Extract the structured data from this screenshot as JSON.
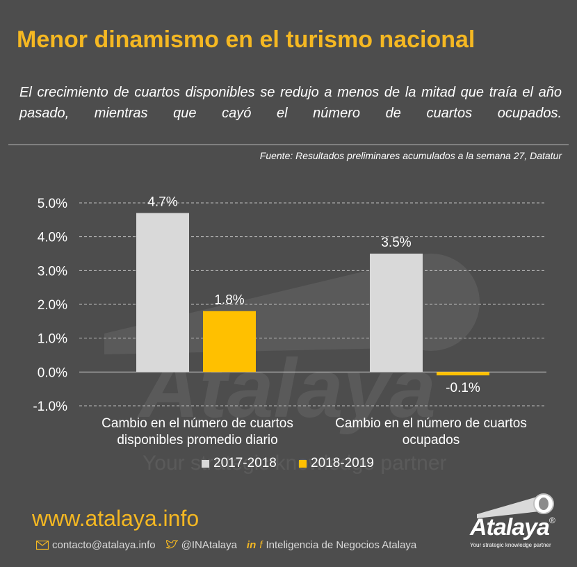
{
  "header": {
    "title": "Menor dinamismo en el turismo nacional",
    "subtitle": "El crecimiento de cuartos disponibles se redujo a menos de la mitad que traía el año pasado, mientras que cayó el número de cuartos ocupados.",
    "source": "Fuente: Resultados preliminares acumulados a la semana 27, Datatur"
  },
  "chart_data": {
    "type": "bar",
    "categories": [
      "Cambio en el número de cuartos disponibles promedio diario",
      "Cambio en el número de cuartos ocupados"
    ],
    "series": [
      {
        "name": "2017-2018",
        "values": [
          4.7,
          3.5
        ],
        "labels": [
          "4.7%",
          "3.5%"
        ],
        "color": "#d9d9d9"
      },
      {
        "name": "2018-2019",
        "values": [
          1.8,
          -0.1
        ],
        "labels": [
          "1.8%",
          "-0.1%"
        ],
        "color": "#ffc000"
      }
    ],
    "ylim": [
      -1.0,
      5.0
    ],
    "yticks": [
      "5.0%",
      "4.0%",
      "3.0%",
      "2.0%",
      "1.0%",
      "0.0%",
      "-1.0%"
    ],
    "ytick_values": [
      5,
      4,
      3,
      2,
      1,
      0,
      -1
    ],
    "grid": "dashed",
    "legend": "bottom"
  },
  "watermark": {
    "name": "Atalaya",
    "tagline": "Your strategic knowledge partner"
  },
  "footer": {
    "url": "www.atalaya.info",
    "email": "contacto@atalaya.info",
    "twitter": "@INAtalaya",
    "linkedin_facebook": "Inteligencia de Negocios Atalaya",
    "icons": [
      "envelope-icon",
      "twitter-icon",
      "linkedin-icon",
      "facebook-icon"
    ]
  },
  "logo": {
    "name": "Atalaya",
    "reg": "®",
    "tagline": "Your strategic knowledge partner"
  },
  "colors": {
    "accent": "#f5b822",
    "background": "#4d4d4d",
    "series1": "#d9d9d9",
    "series2": "#ffc000"
  }
}
